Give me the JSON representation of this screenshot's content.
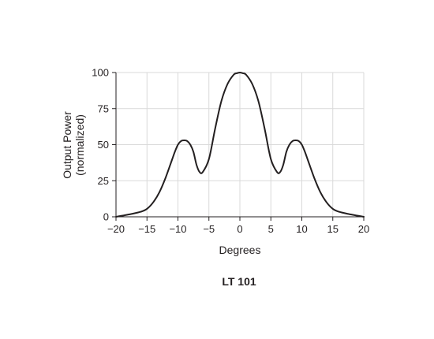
{
  "chart_data": {
    "type": "line",
    "title": "LT 101",
    "xlabel": "Degrees",
    "ylabel_lines": [
      "Output Power",
      "(normalized)"
    ],
    "xlim": [
      -20,
      20
    ],
    "ylim": [
      0,
      100
    ],
    "xticks": [
      -20,
      -15,
      -10,
      -5,
      0,
      5,
      10,
      15,
      20
    ],
    "xtick_labels": [
      "−20",
      "−15",
      "−10",
      "−5",
      "0",
      "5",
      "10",
      "15",
      "20"
    ],
    "yticks": [
      0,
      25,
      50,
      75,
      100
    ],
    "ytick_labels": [
      "0",
      "25",
      "50",
      "75",
      "100"
    ],
    "grid": true,
    "series": [
      {
        "x": [
          -20,
          -17.5,
          -16,
          -15,
          -14,
          -13,
          -12,
          -11,
          -10.5,
          -10,
          -9.5,
          -9,
          -8.5,
          -8,
          -7.5,
          -7,
          -6.5,
          -6,
          -5,
          -4,
          -3,
          -2,
          -1,
          -0.5,
          0,
          0.5,
          1,
          2,
          3,
          4,
          5,
          6,
          6.5,
          7,
          7.5,
          8,
          8.5,
          9,
          9.5,
          10,
          10.5,
          11,
          12,
          13,
          14,
          15,
          16,
          17.5,
          20
        ],
        "y": [
          0,
          2,
          3.5,
          5.5,
          10,
          17,
          27,
          39,
          45,
          50,
          52.5,
          53,
          52.5,
          50,
          45,
          36,
          31,
          31,
          40,
          61,
          80,
          92,
          98.5,
          99.5,
          100,
          99.5,
          98.5,
          92,
          80,
          61,
          40,
          31,
          31,
          36,
          45,
          50,
          52.5,
          53,
          52.5,
          50,
          45,
          39,
          27,
          17,
          10,
          5.5,
          3.5,
          2,
          0
        ],
        "color": "#231f20"
      }
    ]
  }
}
